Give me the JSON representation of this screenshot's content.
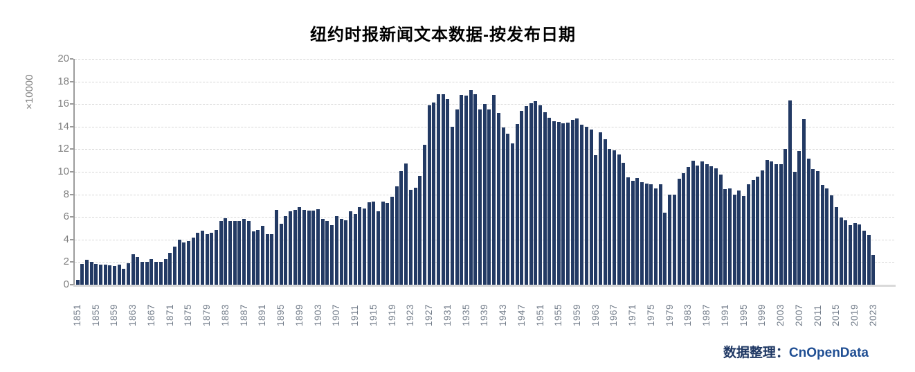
{
  "title": "纽约时报新闻文本数据-按发布日期",
  "y_axis": {
    "unit_label": "×10000",
    "ticks": [
      0,
      2,
      4,
      6,
      8,
      10,
      12,
      14,
      16,
      18,
      20
    ]
  },
  "footer": {
    "prefix": "数据整理：",
    "brand": "CnOpenData"
  },
  "colors": {
    "bar": "#233a64",
    "grid": "#d6d6d6",
    "axis": "#9b9b9b",
    "baseline": "#d9d9d9",
    "tick_text": "#7f7f7f",
    "xtick_text": "#737d8a",
    "title_text": "#000000",
    "footer_prefix": "#1f3864",
    "footer_brand": "#1f4e93"
  },
  "chart_data": {
    "type": "bar",
    "title": "纽约时报新闻文本数据-按发布日期",
    "xlabel": "",
    "ylabel": "×10000",
    "ylim": [
      0,
      20
    ],
    "grid": "horizontal-dashed",
    "bar_color": "#233a64",
    "x": [
      1851,
      1852,
      1853,
      1854,
      1855,
      1856,
      1857,
      1858,
      1859,
      1860,
      1861,
      1862,
      1863,
      1864,
      1865,
      1866,
      1867,
      1868,
      1869,
      1870,
      1871,
      1872,
      1873,
      1874,
      1875,
      1876,
      1877,
      1878,
      1879,
      1880,
      1881,
      1882,
      1883,
      1884,
      1885,
      1886,
      1887,
      1888,
      1889,
      1890,
      1891,
      1892,
      1893,
      1894,
      1895,
      1896,
      1897,
      1898,
      1899,
      1900,
      1901,
      1902,
      1903,
      1904,
      1905,
      1906,
      1907,
      1908,
      1909,
      1910,
      1911,
      1912,
      1913,
      1914,
      1915,
      1916,
      1917,
      1918,
      1919,
      1920,
      1921,
      1922,
      1923,
      1924,
      1925,
      1926,
      1927,
      1928,
      1929,
      1930,
      1931,
      1932,
      1933,
      1934,
      1935,
      1936,
      1937,
      1938,
      1939,
      1940,
      1941,
      1942,
      1943,
      1944,
      1945,
      1946,
      1947,
      1948,
      1949,
      1950,
      1951,
      1952,
      1953,
      1954,
      1955,
      1956,
      1957,
      1958,
      1959,
      1960,
      1961,
      1962,
      1963,
      1964,
      1965,
      1966,
      1967,
      1968,
      1969,
      1970,
      1971,
      1972,
      1973,
      1974,
      1975,
      1976,
      1977,
      1978,
      1979,
      1980,
      1981,
      1982,
      1983,
      1984,
      1985,
      1986,
      1987,
      1988,
      1989,
      1990,
      1991,
      1992,
      1993,
      1994,
      1995,
      1996,
      1997,
      1998,
      1999,
      2000,
      2001,
      2002,
      2003,
      2004,
      2005,
      2006,
      2007,
      2008,
      2009,
      2010,
      2011,
      2012,
      2013,
      2014,
      2015,
      2016,
      2017,
      2018,
      2019,
      2020,
      2021,
      2022,
      2023
    ],
    "values": [
      0.45,
      1.86,
      2.22,
      2.04,
      1.84,
      1.76,
      1.76,
      1.73,
      1.63,
      1.76,
      1.39,
      1.88,
      2.69,
      2.45,
      2.04,
      2.0,
      2.24,
      2.0,
      2.04,
      2.29,
      2.85,
      3.4,
      3.96,
      3.76,
      3.84,
      4.16,
      4.61,
      4.78,
      4.45,
      4.61,
      4.82,
      5.63,
      5.88,
      5.67,
      5.63,
      5.63,
      5.84,
      5.67,
      4.71,
      4.86,
      5.22,
      4.45,
      4.45,
      6.65,
      5.39,
      6.06,
      6.49,
      6.61,
      6.9,
      6.61,
      6.55,
      6.55,
      6.69,
      5.84,
      5.67,
      5.27,
      6.08,
      5.84,
      5.71,
      6.49,
      6.24,
      6.86,
      6.76,
      7.27,
      7.37,
      6.49,
      7.37,
      7.22,
      7.78,
      8.73,
      10.08,
      10.75,
      8.39,
      8.6,
      9.65,
      12.41,
      15.9,
      16.14,
      16.86,
      16.86,
      16.45,
      14.0,
      15.5,
      16.8,
      16.76,
      17.22,
      16.9,
      15.53,
      16.0,
      15.53,
      16.82,
      15.22,
      13.9,
      13.35,
      12.5,
      14.25,
      15.4,
      15.8,
      16.1,
      16.25,
      15.9,
      15.3,
      14.8,
      14.5,
      14.4,
      14.3,
      14.35,
      14.6,
      14.7,
      14.2,
      14.0,
      13.76,
      11.45,
      13.5,
      12.9,
      12.05,
      11.9,
      11.55,
      10.8,
      9.5,
      9.2,
      9.45,
      9.05,
      8.95,
      8.9,
      8.5,
      8.88,
      6.35,
      8.0,
      8.0,
      9.4,
      9.9,
      10.4,
      11.0,
      10.55,
      10.95,
      10.7,
      10.5,
      10.3,
      9.75,
      8.45,
      8.5,
      7.95,
      8.33,
      7.88,
      8.9,
      9.27,
      9.55,
      10.1,
      11.02,
      10.9,
      10.7,
      10.69,
      12.03,
      16.33,
      10.0,
      11.86,
      14.65,
      11.15,
      10.22,
      10.05,
      8.86,
      8.53,
      7.9,
      6.86,
      5.95,
      5.7,
      5.25,
      5.45,
      5.35,
      4.78,
      4.43,
      2.61
    ],
    "xtick_labels": [
      "1851",
      "1855",
      "1859",
      "1863",
      "1867",
      "1871",
      "1875",
      "1879",
      "1883",
      "1887",
      "1891",
      "1895",
      "1899",
      "1903",
      "1907",
      "1911",
      "1915",
      "1919",
      "1923",
      "1927",
      "1931",
      "1935",
      "1939",
      "1943",
      "1947",
      "1951",
      "1955",
      "1959",
      "1963",
      "1967",
      "1971",
      "1975",
      "1979",
      "1983",
      "1987",
      "1991",
      "1995",
      "1999",
      "2003",
      "2007",
      "2011",
      "2015",
      "2019",
      "2023"
    ],
    "xtick_step": 4,
    "legend": null
  }
}
